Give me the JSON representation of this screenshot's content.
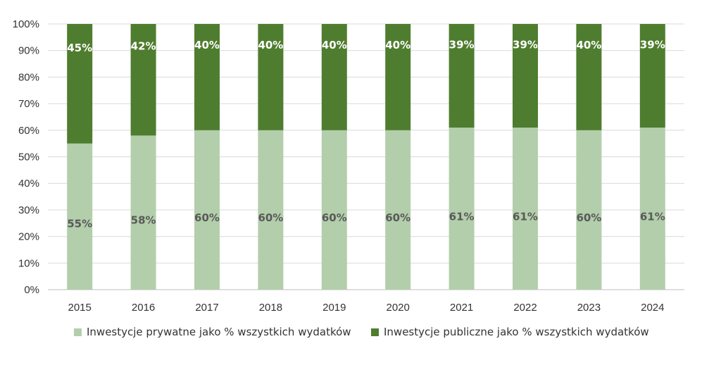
{
  "chart_data": {
    "type": "bar",
    "stacked": true,
    "categories": [
      "2015",
      "2016",
      "2017",
      "2018",
      "2019",
      "2020",
      "2021",
      "2022",
      "2023",
      "2024"
    ],
    "series": [
      {
        "name": "Inwestycje prywatne jako % wszystkich wydatków",
        "values": [
          55,
          58,
          60,
          60,
          60,
          60,
          61,
          61,
          60,
          61
        ],
        "labels": [
          "55%",
          "58%",
          "60%",
          "60%",
          "60%",
          "60%",
          "61%",
          "61%",
          "60%",
          "61%"
        ],
        "color": "#b3ceab",
        "label_color": "#595959"
      },
      {
        "name": "Inwestycje publiczne jako % wszystkich wydatków",
        "values": [
          45,
          42,
          40,
          40,
          40,
          40,
          39,
          39,
          40,
          39
        ],
        "labels": [
          "45%",
          "42%",
          "40%",
          "40%",
          "40%",
          "40%",
          "39%",
          "39%",
          "40%",
          "39%"
        ],
        "color": "#4f7d2f",
        "label_color": "#ffffff"
      }
    ],
    "yticks": [
      "0%",
      "10%",
      "20%",
      "30%",
      "40%",
      "50%",
      "60%",
      "70%",
      "80%",
      "90%",
      "100%"
    ],
    "ylim": [
      0,
      100
    ],
    "title": "",
    "xlabel": "",
    "ylabel": "",
    "grid": true,
    "legend_position": "bottom"
  }
}
